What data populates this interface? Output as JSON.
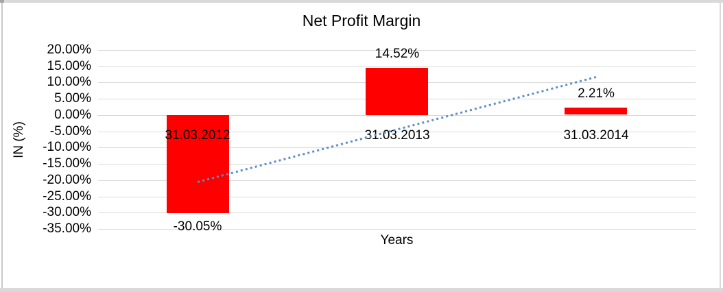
{
  "chart_data": {
    "type": "bar",
    "title": "Net Profit Margin",
    "ylabel": "IN (%)",
    "xlabel": "Years",
    "categories": [
      "31.03.2012",
      "31.03.2013",
      "31.03.2014"
    ],
    "values": [
      -30.05,
      14.52,
      2.21
    ],
    "data_labels": [
      "-30.05%",
      "14.52%",
      "2.21%"
    ],
    "ytick_labels": [
      "20.00%",
      "15.00%",
      "10.00%",
      "5.00%",
      "0.00%",
      "-5.00%",
      "-10.00%",
      "-15.00%",
      "-20.00%",
      "-25.00%",
      "-30.00%",
      "-35.00%"
    ],
    "ylim": [
      -35,
      20
    ],
    "ytick_step": 5,
    "bar_color": "#FF0000",
    "gridline_color": "#D9D9D9",
    "legend": "none",
    "grid": "horizontal",
    "trendline": {
      "style": "dotted",
      "color": "#5B8DC8",
      "start_value": -20.57,
      "end_value": 11.69
    }
  }
}
